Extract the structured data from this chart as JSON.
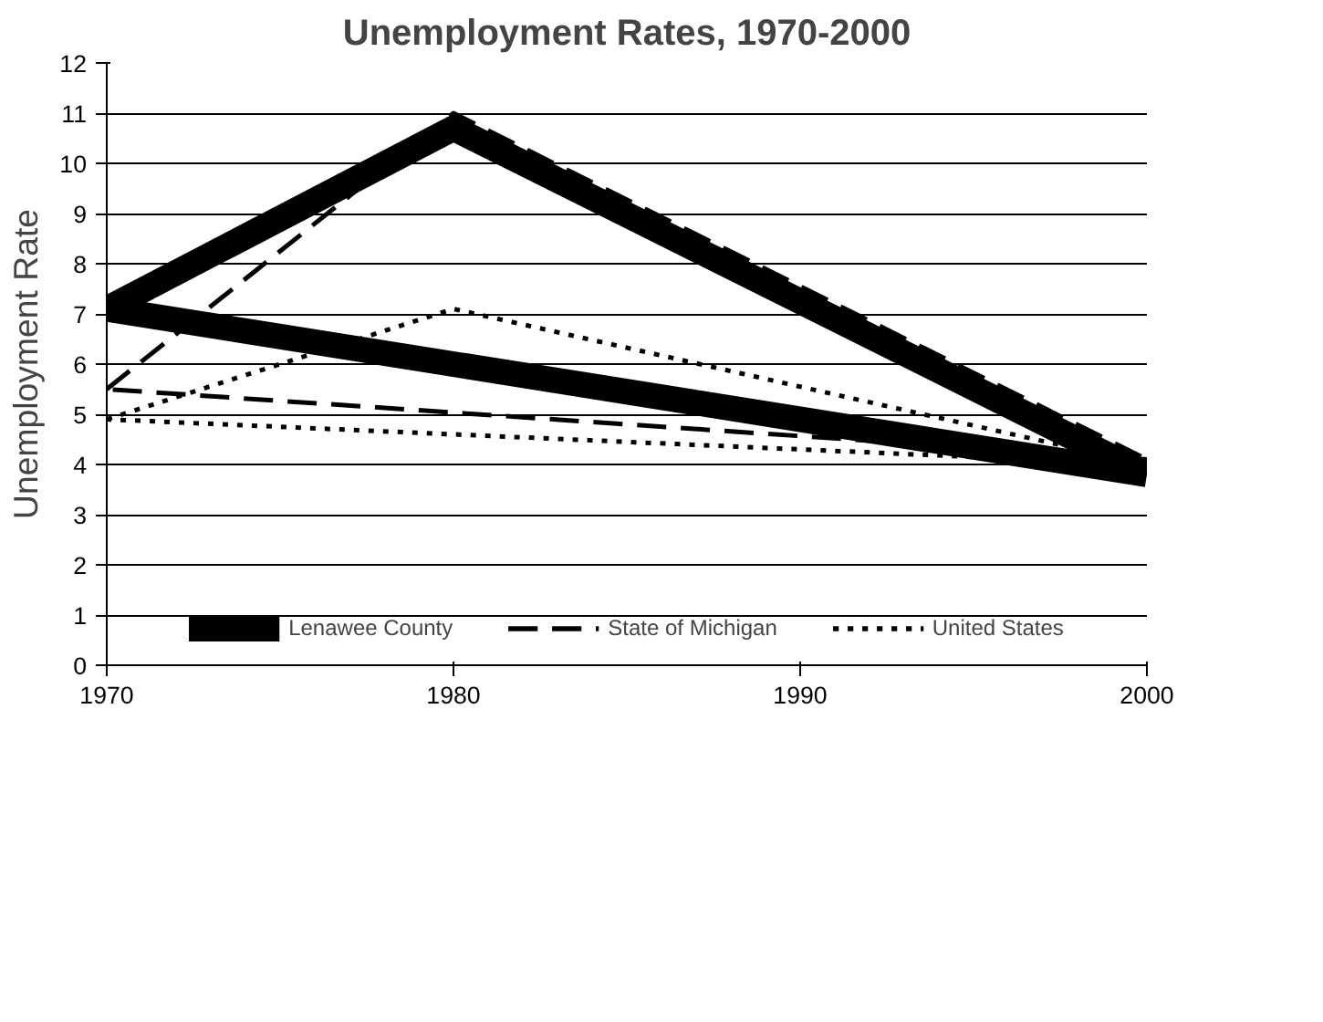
{
  "chart_data": {
    "type": "line",
    "title": "Unemployment Rates, 1970-2000",
    "ylabel": "Unemployment Rate",
    "xlim": [
      1970,
      2000
    ],
    "xticks": [
      1970,
      1980,
      1990,
      2000
    ],
    "ylim": [
      0,
      12
    ],
    "yticks": [
      0,
      1,
      2,
      3,
      4,
      5,
      6,
      7,
      8,
      9,
      10,
      11,
      12
    ],
    "grid": "y",
    "legend": "bottom",
    "marker": "none",
    "series": [
      {
        "name": "Lenawee County",
        "color": "#000000",
        "line_style": "solid",
        "x": [
          1970,
          1980,
          2000,
          1970
        ],
        "values": [
          7.1,
          10.7,
          3.8,
          7.1
        ]
      },
      {
        "name": "State of Michigan",
        "color": "#000000",
        "line_style": "dashed",
        "x": [
          1970,
          1980,
          2000,
          1970
        ],
        "values": [
          5.5,
          11,
          4.1,
          5.5
        ]
      },
      {
        "name": "United States",
        "color": "#000000",
        "line_style": "dotted",
        "x": [
          1970,
          1980,
          2000,
          1970
        ],
        "values": [
          4.9,
          7.1,
          4.0,
          4.9
        ]
      }
    ]
  }
}
